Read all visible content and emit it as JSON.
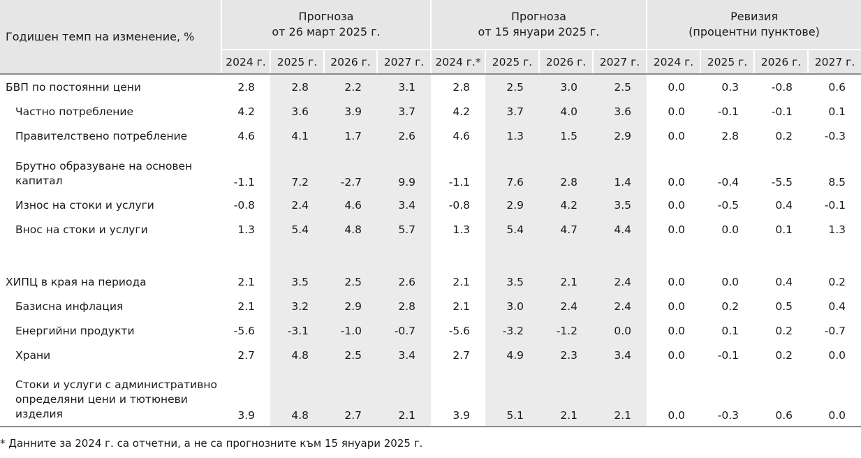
{
  "header": {
    "stub_label": "Годишен темп на изменение, %",
    "groups": [
      {
        "line1": "Прогноза",
        "line2": "от 26 март 2025 г."
      },
      {
        "line1": "Прогноза",
        "line2": "от 15 януари 2025 г."
      },
      {
        "line1": "Ревизия",
        "line2": "(процентни пунктове)"
      }
    ],
    "years": [
      "2024 г.",
      "2025 г.",
      "2026 г.",
      "2027 г.",
      "2024 г.*",
      "2025 г.",
      "2026 г.",
      "2027 г.",
      "2024 г.",
      "2025 г.",
      "2026 г.",
      "2027 г."
    ]
  },
  "rows": [
    {
      "label": "БВП по постоянни цени",
      "values": [
        "2.8",
        "2.8",
        "2.2",
        "3.1",
        "2.8",
        "2.5",
        "3.0",
        "2.5",
        "0.0",
        "0.3",
        "-0.8",
        "0.6"
      ]
    },
    {
      "label": "Частно потребление",
      "values": [
        "4.2",
        "3.6",
        "3.9",
        "3.7",
        "4.2",
        "3.7",
        "4.0",
        "3.6",
        "0.0",
        "-0.1",
        "-0.1",
        "0.1"
      ]
    },
    {
      "label": "Правителствено потребление",
      "values": [
        "4.6",
        "4.1",
        "1.7",
        "2.6",
        "4.6",
        "1.3",
        "1.5",
        "2.9",
        "0.0",
        "2.8",
        "0.2",
        "-0.3"
      ]
    },
    {
      "label": "Брутно образуване на основен капитал",
      "values": [
        "-1.1",
        "7.2",
        "-2.7",
        "9.9",
        "-1.1",
        "7.6",
        "2.8",
        "1.4",
        "0.0",
        "-0.4",
        "-5.5",
        "8.5"
      ]
    },
    {
      "label": "Износ на стоки и услуги",
      "values": [
        "-0.8",
        "2.4",
        "4.6",
        "3.4",
        "-0.8",
        "2.9",
        "4.2",
        "3.5",
        "0.0",
        "-0.5",
        "0.4",
        "-0.1"
      ]
    },
    {
      "label": "Внос на стоки и услуги",
      "values": [
        "1.3",
        "5.4",
        "4.8",
        "5.7",
        "1.3",
        "5.4",
        "4.7",
        "4.4",
        "0.0",
        "0.0",
        "0.1",
        "1.3"
      ]
    },
    {
      "label": "ХИПЦ в края на периода",
      "values": [
        "2.1",
        "3.5",
        "2.5",
        "2.6",
        "2.1",
        "3.5",
        "2.1",
        "2.4",
        "0.0",
        "0.0",
        "0.4",
        "0.2"
      ]
    },
    {
      "label": "Базисна инфлация",
      "values": [
        "2.1",
        "3.2",
        "2.9",
        "2.8",
        "2.1",
        "3.0",
        "2.4",
        "2.4",
        "0.0",
        "0.2",
        "0.5",
        "0.4"
      ]
    },
    {
      "label": "Енергийни продукти",
      "values": [
        "-5.6",
        "-3.1",
        "-1.0",
        "-0.7",
        "-5.6",
        "-3.2",
        "-1.2",
        "0.0",
        "0.0",
        "0.1",
        "0.2",
        "-0.7"
      ]
    },
    {
      "label": "Храни",
      "values": [
        "2.7",
        "4.8",
        "2.5",
        "3.4",
        "2.7",
        "4.9",
        "2.3",
        "3.4",
        "0.0",
        "-0.1",
        "0.2",
        "0.0"
      ]
    },
    {
      "label": "Стоки и услуги с административно определяни цени и тютюневи изделия",
      "values": [
        "3.9",
        "4.8",
        "2.7",
        "2.1",
        "3.9",
        "5.1",
        "2.1",
        "2.1",
        "0.0",
        "-0.3",
        "0.6",
        "0.0"
      ]
    }
  ],
  "footnote": "* Данните за 2024 г. са отчетни, а не са прогнозните към 15 януари 2025 г."
}
